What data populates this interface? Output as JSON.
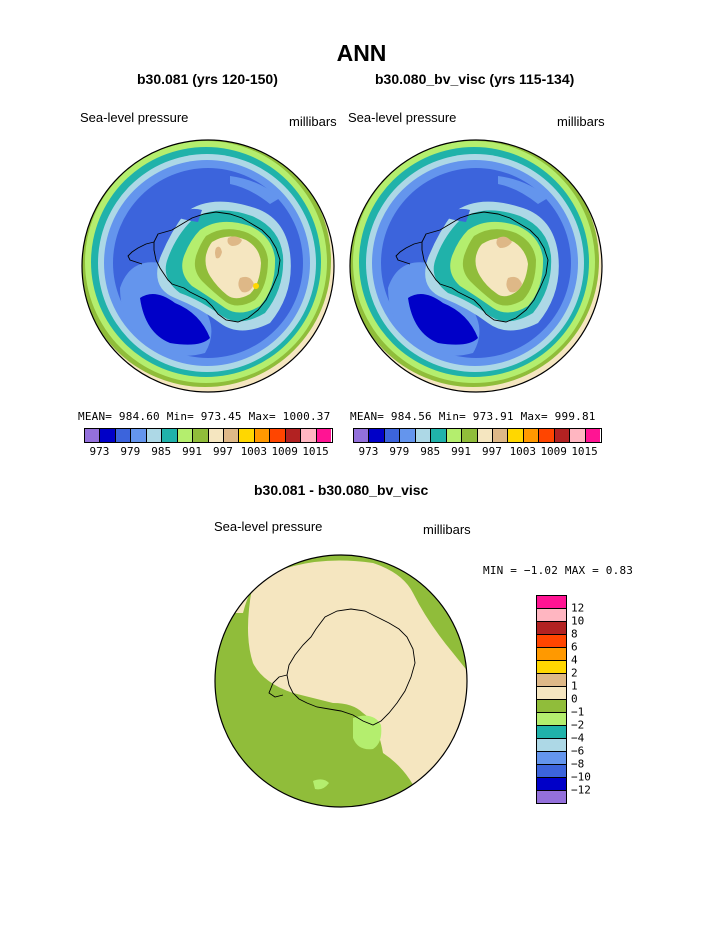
{
  "title": "ANN",
  "panels": [
    {
      "case": "b30.081 (yrs 120-150)",
      "left_label": "Sea-level pressure",
      "right_label": "millibars",
      "stats": "MEAN=  984.60   Min=  973.45   Max=  1000.37"
    },
    {
      "case": "b30.080_bv_visc (yrs 115-134)",
      "left_label": "Sea-level pressure",
      "right_label": "millibars",
      "stats": "MEAN=  984.56   Min=  973.91   Max=  999.81"
    }
  ],
  "top_colorbar": {
    "colors": [
      "#9370db",
      "#0000c8",
      "#3c64dc",
      "#6495ed",
      "#add8e6",
      "#20b2aa",
      "#b4ee6e",
      "#90bd3a",
      "#f5e6c0",
      "#deb887",
      "#ffd700",
      "#ff9900",
      "#ff4500",
      "#b22222",
      "#ffb6c1",
      "#ff1493"
    ],
    "tick_labels": [
      "973",
      "979",
      "985",
      "991",
      "997",
      "1003",
      "1009",
      "1015"
    ]
  },
  "diff_panel": {
    "case": "b30.081 - b30.080_bv_visc",
    "left_label": "Sea-level pressure",
    "right_label": "millibars",
    "stats": "MIN =   −1.02  MAX =    0.83"
  },
  "diff_colorbar": {
    "colors": [
      "#ff1493",
      "#ffb6c1",
      "#b22222",
      "#ff4500",
      "#ff9900",
      "#ffd700",
      "#deb887",
      "#f5e6c0",
      "#90bd3a",
      "#b4ee6e",
      "#20b2aa",
      "#add8e6",
      "#6495ed",
      "#3c64dc",
      "#0000c8",
      "#9370db"
    ],
    "tick_labels": [
      "12",
      "10",
      "8",
      "6",
      "4",
      "2",
      "1",
      "0",
      "−1",
      "−2",
      "−4",
      "−6",
      "−8",
      "−10",
      "−12"
    ]
  }
}
